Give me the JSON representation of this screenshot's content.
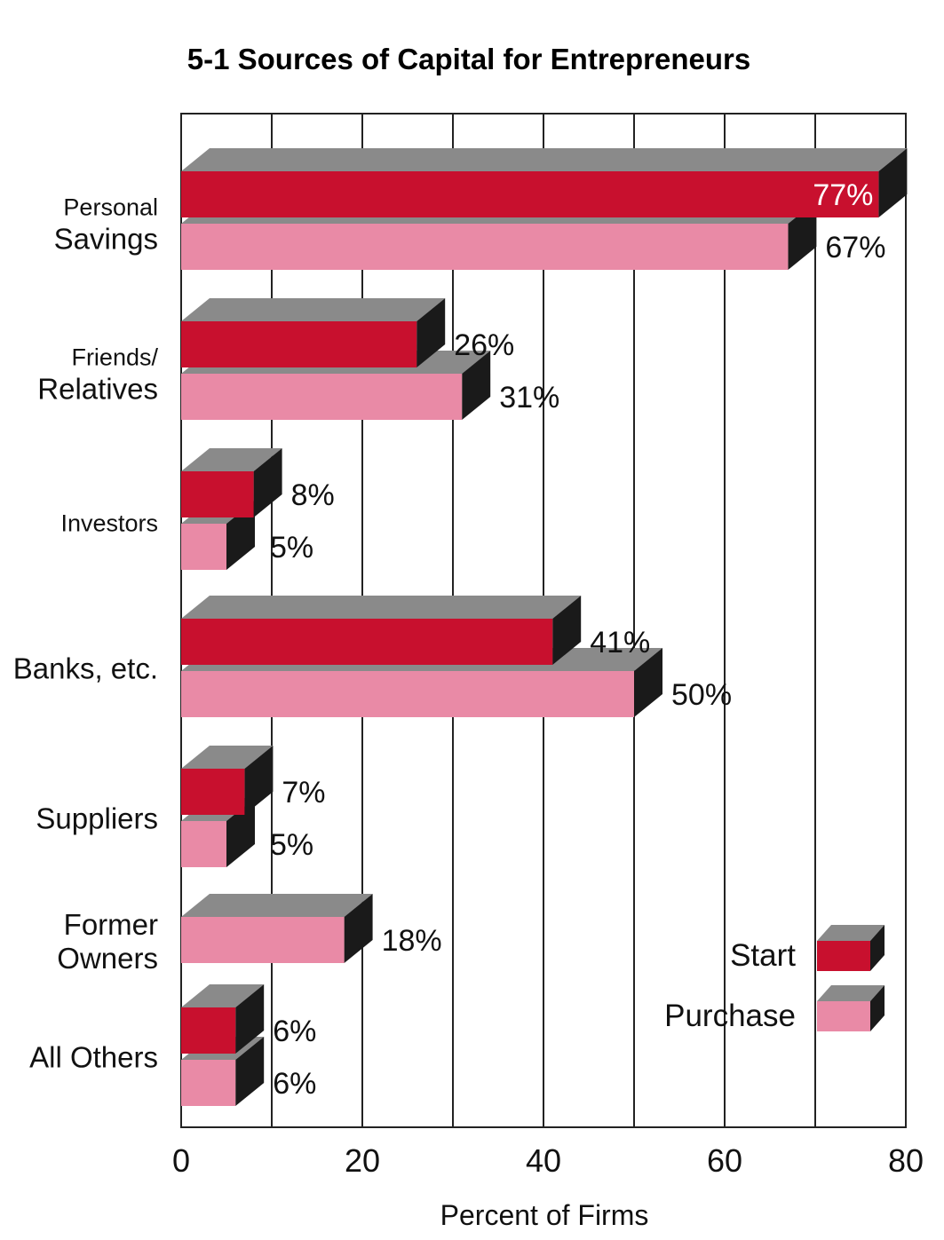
{
  "chart_data": {
    "type": "bar",
    "orientation": "horizontal",
    "title": "5-1 Sources of Capital for Entrepreneurs",
    "xlabel": "Percent of Firms",
    "xlim": [
      0,
      80
    ],
    "x_ticks": [
      0,
      20,
      40,
      60,
      80
    ],
    "grid": true,
    "legend_position": "bottom-right",
    "categories": [
      {
        "line1": "Personal",
        "line2": "Savings"
      },
      {
        "line1": "Friends/",
        "line2": "Relatives"
      },
      {
        "line1": "Investors",
        "line2": ""
      },
      {
        "line1": "Banks, etc.",
        "line2": ""
      },
      {
        "line1": "Suppliers",
        "line2": ""
      },
      {
        "line1": "Former",
        "line2": "Owners"
      },
      {
        "line1": "All Others",
        "line2": ""
      }
    ],
    "series": [
      {
        "name": "Start",
        "color": "#c8102e",
        "values": [
          77,
          26,
          8,
          41,
          7,
          null,
          6
        ],
        "labels": [
          "77%",
          "26%",
          "8%",
          "41%",
          "7%",
          "",
          "6%"
        ]
      },
      {
        "name": "Purchase",
        "color": "#e98aa6",
        "values": [
          67,
          31,
          5,
          50,
          5,
          18,
          6
        ],
        "labels": [
          "67%",
          "31%",
          "5%",
          "50%",
          "5%",
          "18%",
          "6%"
        ]
      }
    ],
    "colors": {
      "top_face": "#8a8a8a",
      "side_face": "#1a1a1a",
      "grid": "#222222"
    }
  }
}
